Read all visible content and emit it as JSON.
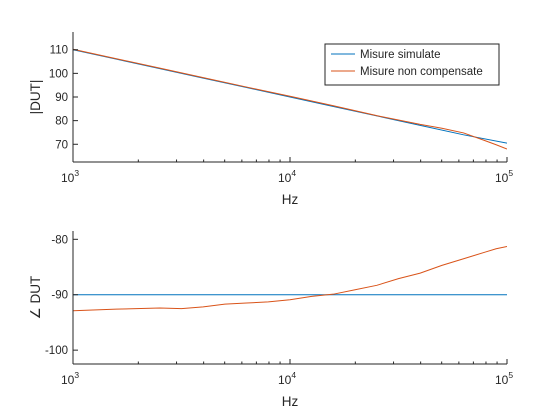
{
  "chart_data": [
    {
      "type": "line",
      "xlabel": "Hz",
      "ylabel": "|DUT|",
      "xscale": "log",
      "xlim": [
        1000,
        100000
      ],
      "ylim": [
        62.5,
        117.5
      ],
      "xticks": [
        1000,
        10000,
        100000
      ],
      "yticks": [
        70,
        80,
        90,
        100,
        110
      ],
      "ytick_labels": [
        "70",
        "80",
        "90",
        "100",
        "110"
      ],
      "grid": false,
      "legend_position": "top-right",
      "series": [
        {
          "name": "Misure simulate",
          "color": "#0072BD",
          "x": [
            1000,
            1585,
            2512,
            3981,
            6310,
            10000,
            15849,
            25119,
            39811,
            63096,
            100000
          ],
          "y": [
            110,
            106,
            102,
            98,
            94,
            90,
            86,
            82,
            78,
            74,
            70.5
          ]
        },
        {
          "name": "Misure non compensate",
          "color": "#D95319",
          "x": [
            1000,
            1585,
            2512,
            3981,
            6310,
            10000,
            15849,
            25119,
            39811,
            50119,
            63096,
            79433,
            89125,
            100000
          ],
          "y": [
            110.2,
            106.2,
            102.2,
            98.2,
            94.2,
            90.3,
            86.3,
            82.1,
            78.4,
            76.8,
            74.8,
            71.5,
            69.8,
            68
          ]
        }
      ]
    },
    {
      "type": "line",
      "xlabel": "Hz",
      "ylabel": "∠ DUT",
      "xscale": "log",
      "xlim": [
        1000,
        100000
      ],
      "ylim": [
        -102.5,
        -78.5
      ],
      "xticks": [
        1000,
        10000,
        100000
      ],
      "yticks": [
        -80,
        -90,
        -100
      ],
      "ytick_labels": [
        "-80",
        "-90",
        "-100"
      ],
      "grid": false,
      "series": [
        {
          "color": "#0072BD",
          "x": [
            1000,
            100000
          ],
          "y": [
            -90,
            -90
          ]
        },
        {
          "color": "#D95319",
          "x": [
            1000,
            1585,
            2512,
            3162,
            3981,
            5012,
            6310,
            7943,
            10000,
            12589,
            15849,
            19953,
            25119,
            31623,
            39811,
            50119,
            63096,
            79433,
            89125,
            100000
          ],
          "y": [
            -92.9,
            -92.6,
            -92.4,
            -92.5,
            -92.2,
            -91.7,
            -91.5,
            -91.3,
            -90.9,
            -90.3,
            -89.9,
            -89.1,
            -88.3,
            -87.1,
            -86.1,
            -84.7,
            -83.5,
            -82.3,
            -81.7,
            -81.3
          ]
        }
      ]
    }
  ]
}
